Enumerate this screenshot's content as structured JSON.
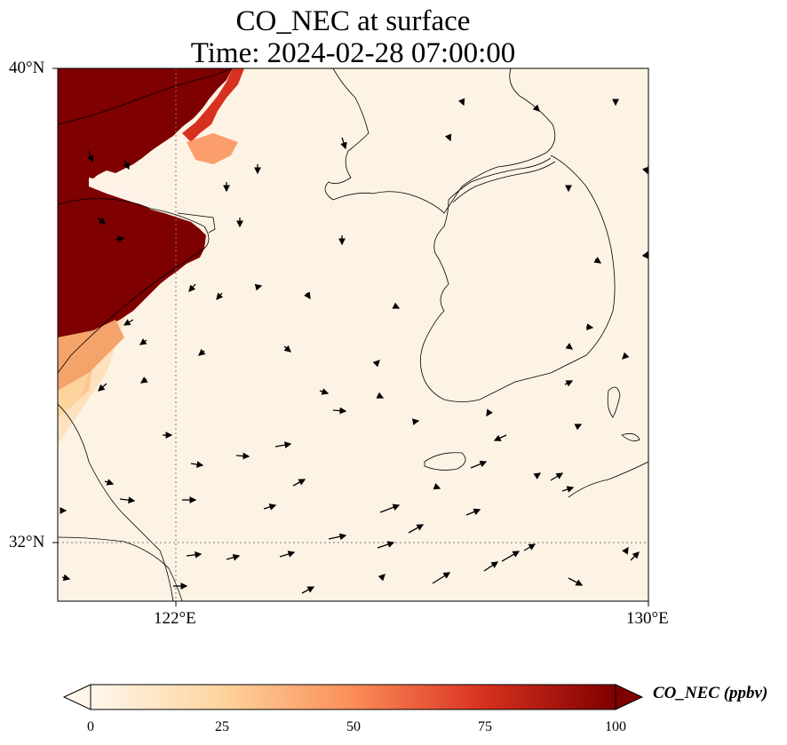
{
  "title_line1": "CO_NEC at surface",
  "title_line2": "Time: 2024-02-28 07:00:00",
  "map": {
    "lat_labels": [
      "40°N",
      "32°N"
    ],
    "lon_labels": [
      "122°E",
      "130°E"
    ],
    "lon_range": [
      120,
      130
    ],
    "lat_range": [
      31,
      40
    ],
    "gridlines": "dotted",
    "field": "CO_NEC",
    "high_region": "northwest (Shandong / Bohai area)",
    "vectors": "wind arrows"
  },
  "colorbar": {
    "label": "CO_NEC (ppbv)",
    "colormap": "OrRd",
    "ticks": [
      "0",
      "25",
      "50",
      "75",
      "100"
    ],
    "range": [
      0,
      100
    ],
    "extend": "both",
    "colors": [
      "#fff7ec",
      "#fdd49e",
      "#fc8d59",
      "#d7301f",
      "#7f0000"
    ]
  }
}
